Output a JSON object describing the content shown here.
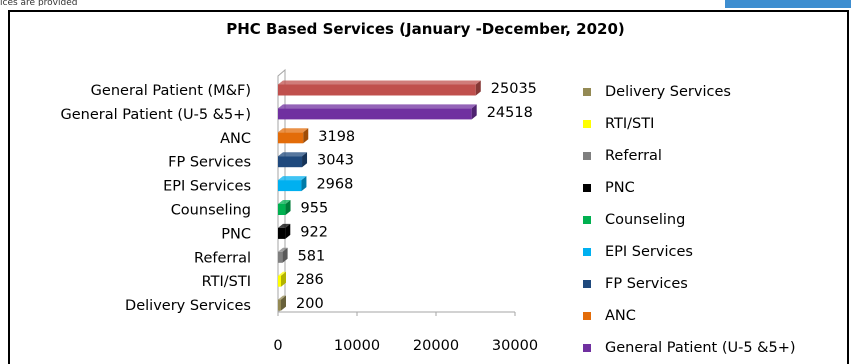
{
  "top_fragment": "ices are provided",
  "chart_data": {
    "type": "bar",
    "orientation": "horizontal",
    "title": "PHC Based Services (January -December, 2020)",
    "categories": [
      "General Patient (M&F)",
      "General Patient (U-5 &5+)",
      "ANC",
      "FP Services",
      "EPI Services",
      "Counseling",
      "PNC",
      "Referral",
      "RTI/STI",
      "Delivery Services"
    ],
    "values": [
      25035,
      24518,
      3198,
      3043,
      2968,
      955,
      922,
      581,
      286,
      200
    ],
    "data_labels": [
      "25035",
      "24518",
      "3198",
      "3043",
      "2968",
      "955",
      "922",
      "581",
      "286",
      "200"
    ],
    "colors": [
      "#c0504d",
      "#7030a0",
      "#e36c09",
      "#1f497d",
      "#00b0f0",
      "#00b050",
      "#000000",
      "#7f7f7f",
      "#ffff00",
      "#948a54"
    ],
    "xlim": [
      0,
      30000
    ],
    "xticks": [
      "0",
      "10000",
      "20000",
      "30000"
    ],
    "grid": false,
    "legend_position": "right",
    "legend": [
      {
        "label": "Delivery Services",
        "color": "#948a54"
      },
      {
        "label": "RTI/STI",
        "color": "#ffff00"
      },
      {
        "label": "Referral",
        "color": "#7f7f7f"
      },
      {
        "label": "PNC",
        "color": "#000000"
      },
      {
        "label": "Counseling",
        "color": "#00b050"
      },
      {
        "label": "EPI Services",
        "color": "#00b0f0"
      },
      {
        "label": "FP Services",
        "color": "#1f497d"
      },
      {
        "label": "ANC",
        "color": "#e36c09"
      },
      {
        "label": "General Patient (U-5 &5+)",
        "color": "#7030a0"
      }
    ]
  }
}
